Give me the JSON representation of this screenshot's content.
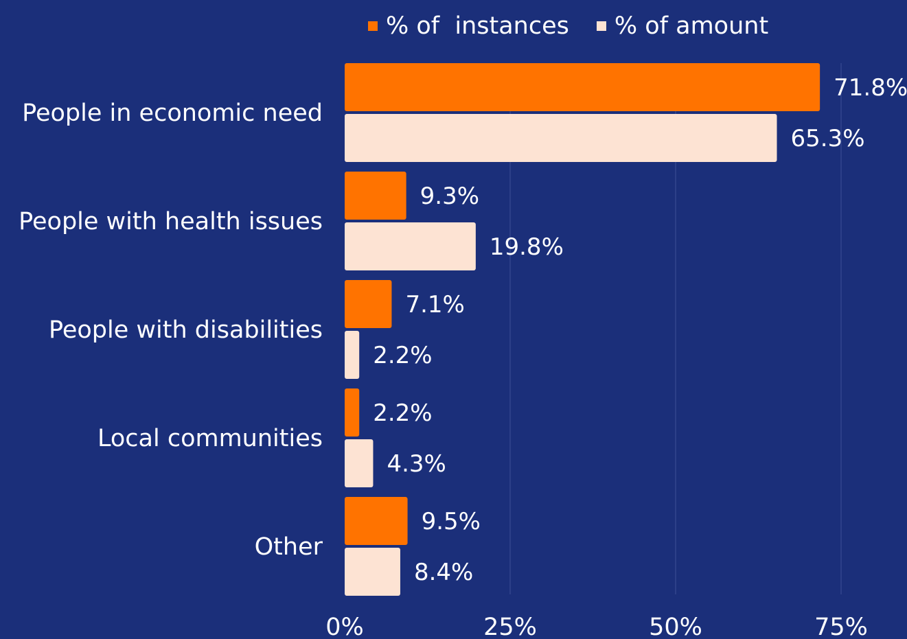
{
  "chart_data": {
    "type": "bar",
    "orientation": "horizontal",
    "categories": [
      "People in economic need",
      "People with health issues",
      "People with disabilities",
      "Local communities",
      "Other"
    ],
    "series": [
      {
        "name": "% of  instances",
        "color": "#ff7300",
        "values": [
          71.8,
          9.3,
          7.1,
          2.2,
          9.5
        ],
        "labels": [
          "71.8%",
          "9.3%",
          "7.1%",
          "2.2%",
          "9.5%"
        ]
      },
      {
        "name": "% of amount",
        "color": "#fde3d3",
        "values": [
          65.3,
          19.8,
          2.2,
          4.3,
          8.4
        ],
        "labels": [
          "65.3%",
          "19.8%",
          "2.2%",
          "4.3%",
          "8.4%"
        ]
      }
    ],
    "xlim": [
      0,
      75
    ],
    "xticks": [
      0,
      25,
      50,
      75
    ],
    "xtick_labels": [
      "0%",
      "25%",
      "50%",
      "75%"
    ],
    "grid": true,
    "legend_position": "top"
  },
  "colors": {
    "background": "#1b2f7a",
    "grid": "#3e4f95",
    "text": "#ffffff"
  }
}
